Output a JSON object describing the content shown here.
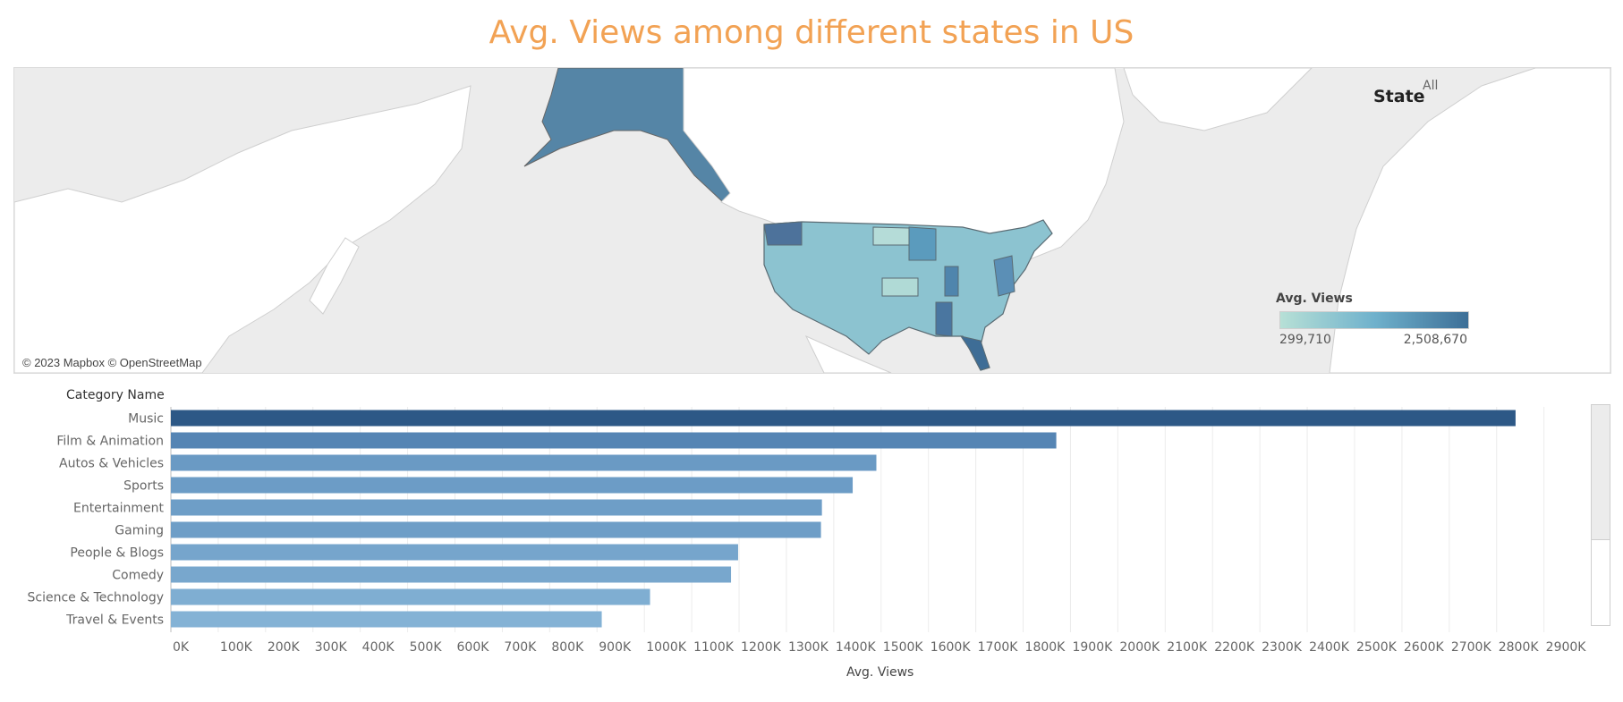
{
  "title": "Avg. Views among different states in US",
  "map": {
    "attribution": "© 2023 Mapbox © OpenStreetMap",
    "state_filter": {
      "label": "State",
      "value": "All"
    },
    "legend": {
      "title": "Avg. Views",
      "min": "299,710",
      "max": "2,508,670",
      "colors": [
        "#b7e0d6",
        "#6fb1cc",
        "#3d6f97"
      ]
    }
  },
  "chart_data": {
    "type": "bar",
    "orientation": "horizontal",
    "category_header": "Category Name",
    "categories": [
      "Music",
      "Film & Animation",
      "Autos & Vehicles",
      "Sports",
      "Entertainment",
      "Gaming",
      "People & Blogs",
      "Comedy",
      "Science & Technology",
      "Travel & Events"
    ],
    "values": [
      2840000,
      1870000,
      1490000,
      1440000,
      1375000,
      1373000,
      1198000,
      1183000,
      1012000,
      910000
    ],
    "xlabel": "Avg. Views",
    "xlim": [
      0,
      2980000
    ],
    "ticks": [
      0,
      100000,
      200000,
      300000,
      400000,
      500000,
      600000,
      700000,
      800000,
      900000,
      1000000,
      1100000,
      1200000,
      1300000,
      1400000,
      1500000,
      1600000,
      1700000,
      1800000,
      1900000,
      2000000,
      2100000,
      2200000,
      2300000,
      2400000,
      2500000,
      2600000,
      2700000,
      2800000,
      2900000
    ],
    "tick_labels": [
      "0K",
      "100K",
      "200K",
      "300K",
      "400K",
      "500K",
      "600K",
      "700K",
      "800K",
      "900K",
      "1000K",
      "1100K",
      "1200K",
      "1300K",
      "1400K",
      "1500K",
      "1600K",
      "1700K",
      "1800K",
      "1900K",
      "2000K",
      "2100K",
      "2200K",
      "2300K",
      "2400K",
      "2500K",
      "2600K",
      "2700K",
      "2800K",
      "2900K"
    ],
    "grid": true,
    "colors": [
      "#2d5886",
      "#5585b4",
      "#6a9ac4",
      "#6c9cc6",
      "#6e9ec7",
      "#6e9ec7",
      "#76a5cc",
      "#78a7cd",
      "#7faed2",
      "#84b2d5"
    ]
  }
}
